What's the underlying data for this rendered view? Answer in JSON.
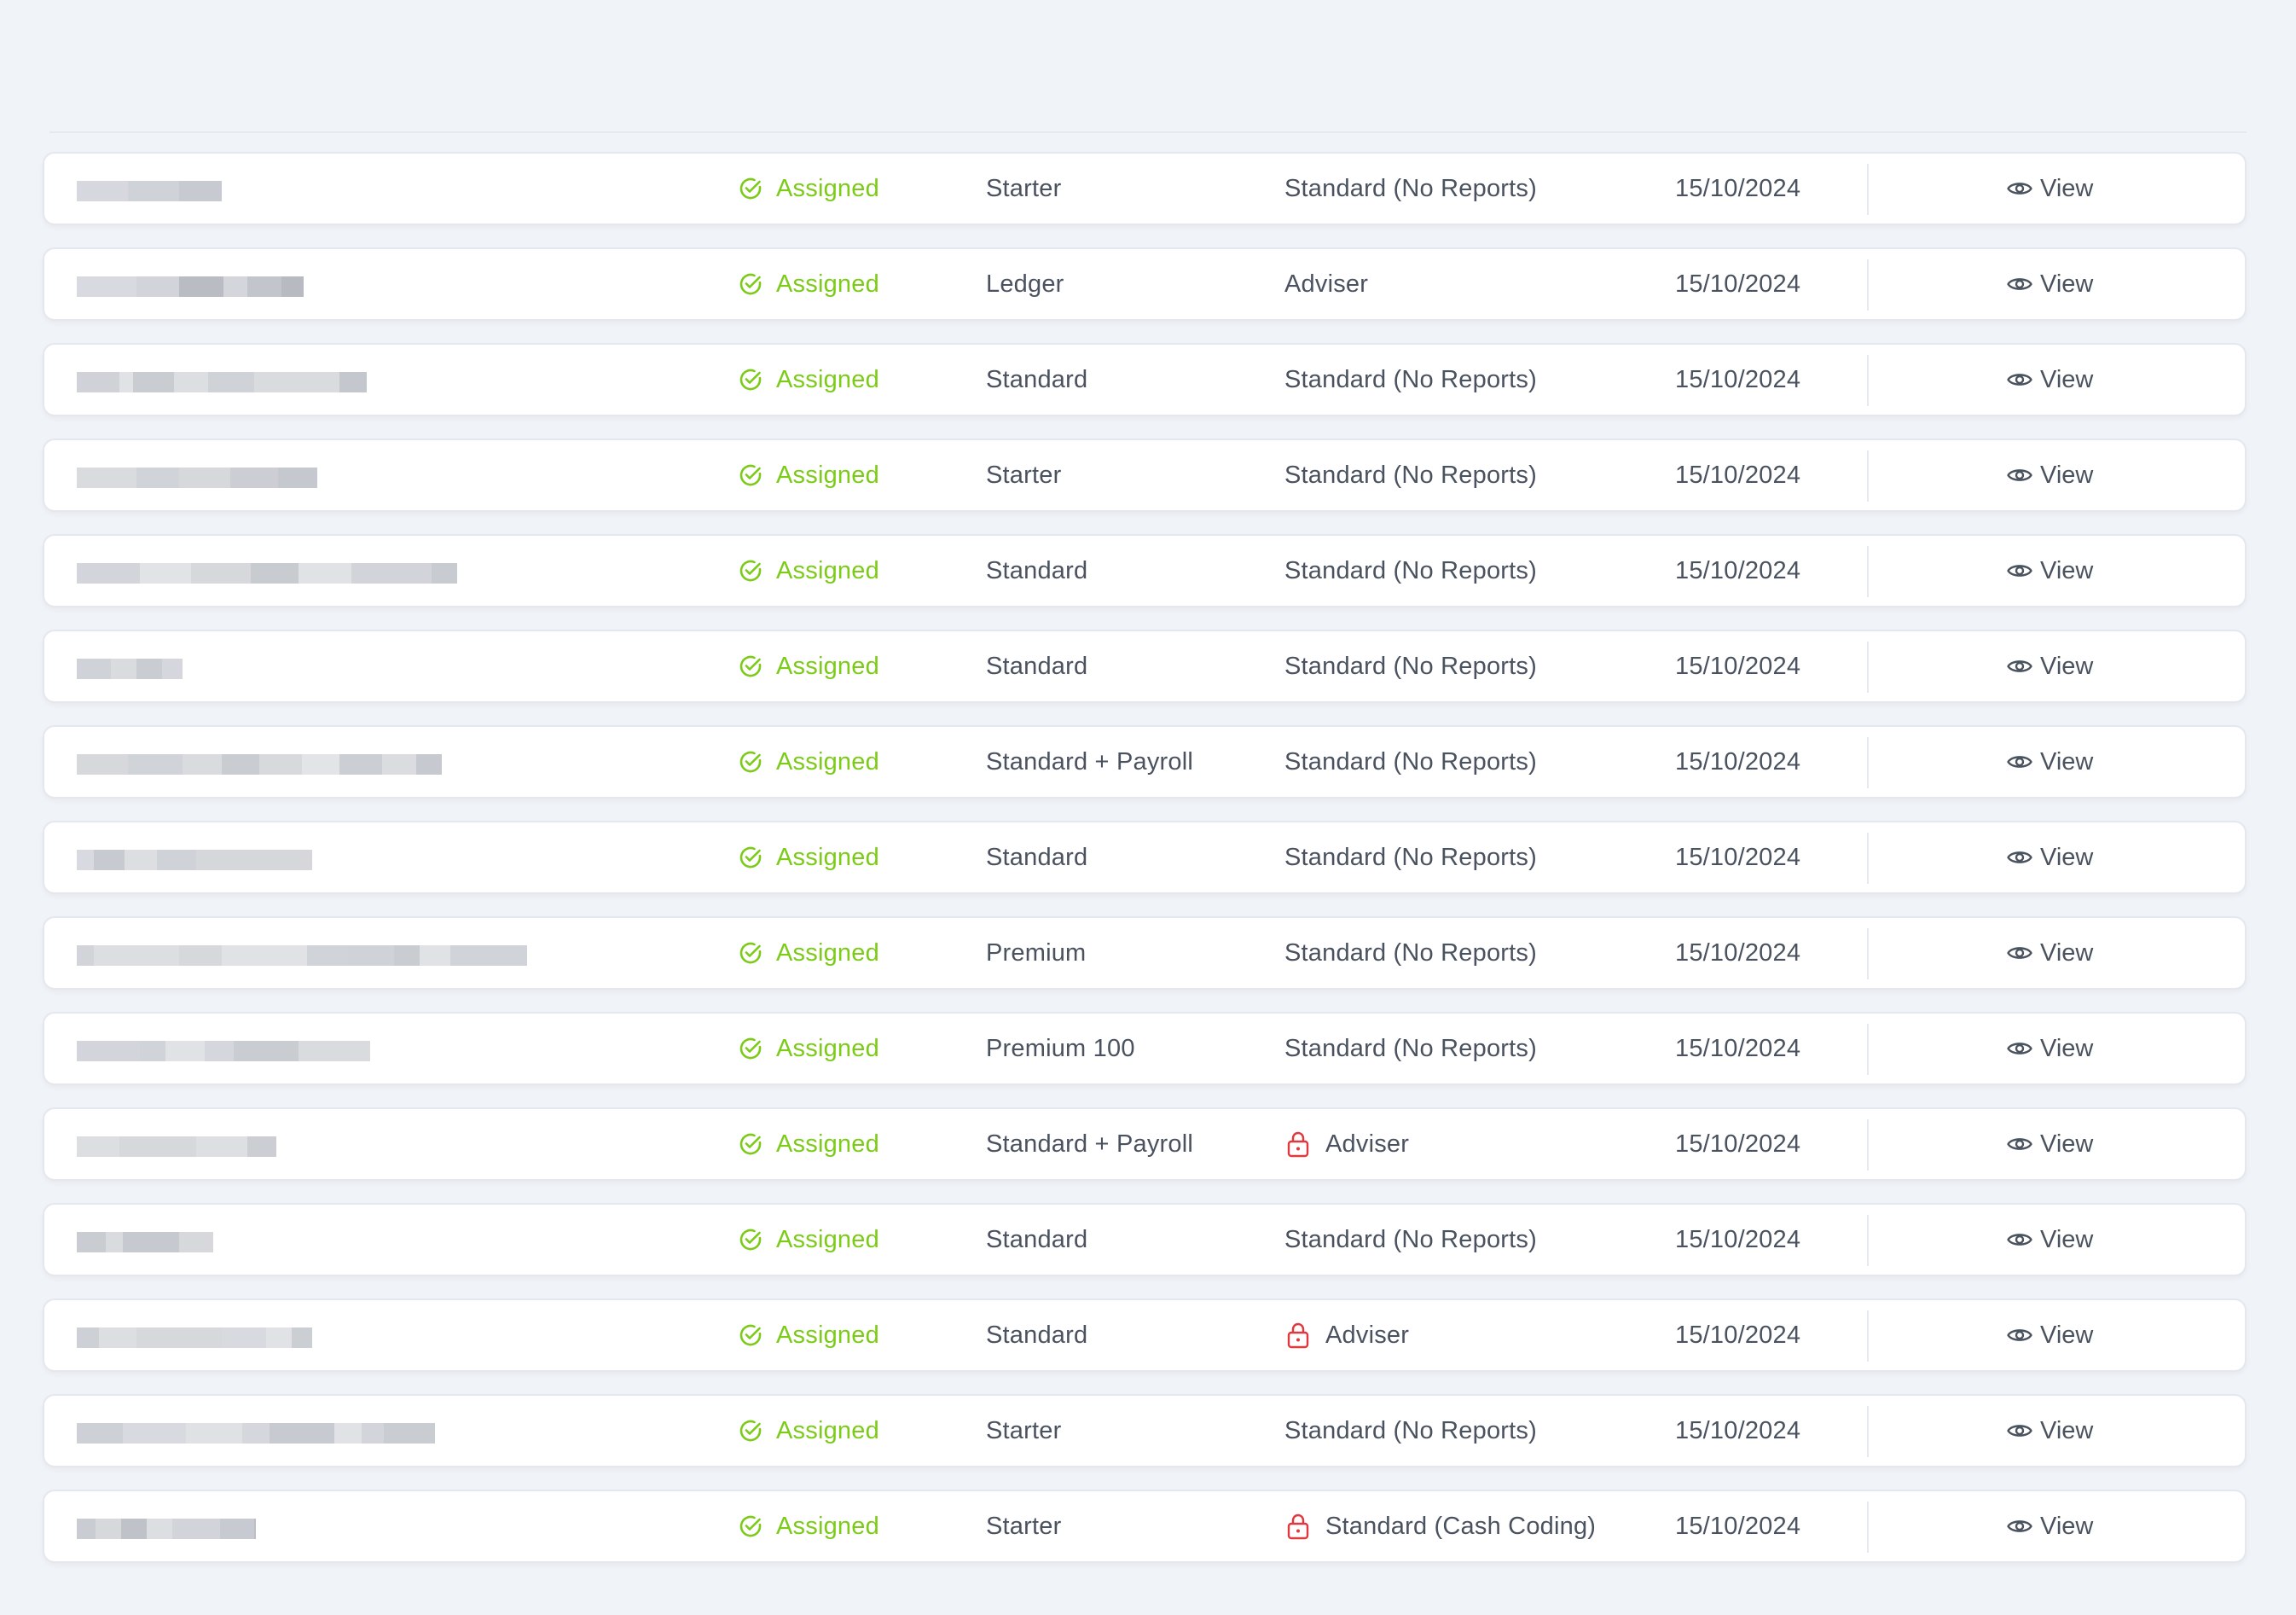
{
  "colors": {
    "assigned": "#7ccb18",
    "lock": "#e0383e",
    "text": "#4a5260",
    "background": "#f0f3f7"
  },
  "rows": [
    {
      "status": "Assigned",
      "plan": "Starter",
      "access": "Standard (No Reports)",
      "locked": false,
      "date": "15/10/2024",
      "action": "View",
      "name_blur": [
        [
          60,
          "#d6d8dd"
        ],
        [
          60,
          "#cfd2d7"
        ],
        [
          50,
          "#c7cad0"
        ]
      ]
    },
    {
      "status": "Assigned",
      "plan": "Ledger",
      "access": "Adviser",
      "locked": false,
      "date": "15/10/2024",
      "action": "View",
      "name_blur": [
        [
          70,
          "#d8dadf"
        ],
        [
          50,
          "#d2d4d9"
        ],
        [
          52,
          "#b9bcc3"
        ],
        [
          28,
          "#d4d6db"
        ],
        [
          40,
          "#c2c5cb"
        ],
        [
          26,
          "#b7bac1"
        ]
      ]
    },
    {
      "status": "Assigned",
      "plan": "Standard",
      "access": "Standard (No Reports)",
      "locked": false,
      "date": "15/10/2024",
      "action": "View",
      "name_blur": [
        [
          50,
          "#d0d2d7"
        ],
        [
          16,
          "#e0e2e6"
        ],
        [
          48,
          "#c9ccd1"
        ],
        [
          40,
          "#dcdee2"
        ],
        [
          54,
          "#cfd2d7"
        ],
        [
          100,
          "#d9dbdf"
        ],
        [
          32,
          "#c4c7cd"
        ]
      ]
    },
    {
      "status": "Assigned",
      "plan": "Starter",
      "access": "Standard (No Reports)",
      "locked": false,
      "date": "15/10/2024",
      "action": "View",
      "name_blur": [
        [
          70,
          "#d9dbdf"
        ],
        [
          50,
          "#d0d3d8"
        ],
        [
          60,
          "#d6d8dc"
        ],
        [
          56,
          "#ccced3"
        ],
        [
          46,
          "#c5c8ce"
        ]
      ]
    },
    {
      "status": "Assigned",
      "plan": "Standard",
      "access": "Standard (No Reports)",
      "locked": false,
      "date": "15/10/2024",
      "action": "View",
      "name_blur": [
        [
          74,
          "#d3d5da"
        ],
        [
          60,
          "#e1e3e6"
        ],
        [
          70,
          "#d6d8dc"
        ],
        [
          56,
          "#c8cbd0"
        ],
        [
          62,
          "#e0e2e5"
        ],
        [
          94,
          "#d2d4d9"
        ],
        [
          30,
          "#c8cbd0"
        ]
      ]
    },
    {
      "status": "Assigned",
      "plan": "Standard",
      "access": "Standard (No Reports)",
      "locked": false,
      "date": "15/10/2024",
      "action": "View",
      "name_blur": [
        [
          40,
          "#cfd2d7"
        ],
        [
          30,
          "#d9dbdf"
        ],
        [
          30,
          "#c9ccd1"
        ],
        [
          24,
          "#d5d7dc"
        ]
      ]
    },
    {
      "status": "Assigned",
      "plan": "Standard + Payroll",
      "access": "Standard (No Reports)",
      "locked": false,
      "date": "15/10/2024",
      "action": "View",
      "name_blur": [
        [
          60,
          "#d6d8dc"
        ],
        [
          64,
          "#d0d3d8"
        ],
        [
          46,
          "#d9dbdf"
        ],
        [
          44,
          "#c9ccd1"
        ],
        [
          50,
          "#d7d9dd"
        ],
        [
          44,
          "#e2e4e7"
        ],
        [
          50,
          "#cbced3"
        ],
        [
          40,
          "#dadce0"
        ],
        [
          30,
          "#c6c9cf"
        ]
      ]
    },
    {
      "status": "Assigned",
      "plan": "Standard",
      "access": "Standard (No Reports)",
      "locked": false,
      "date": "15/10/2024",
      "action": "View",
      "name_blur": [
        [
          20,
          "#d8dadf"
        ],
        [
          36,
          "#c7cad0"
        ],
        [
          38,
          "#dcdee2"
        ],
        [
          46,
          "#cfd2d7"
        ],
        [
          136,
          "#d5d7db"
        ]
      ]
    },
    {
      "status": "Assigned",
      "plan": "Premium",
      "access": "Standard (No Reports)",
      "locked": false,
      "date": "15/10/2024",
      "action": "View",
      "name_blur": [
        [
          20,
          "#d2d4d9"
        ],
        [
          100,
          "#dcdee2"
        ],
        [
          50,
          "#d6d8dc"
        ],
        [
          100,
          "#e0e2e6"
        ],
        [
          48,
          "#d0d3d8"
        ],
        [
          54,
          "#cfd2d7"
        ],
        [
          30,
          "#c9ccd1"
        ],
        [
          36,
          "#e0e2e5"
        ],
        [
          90,
          "#d0d3d8"
        ]
      ]
    },
    {
      "status": "Assigned",
      "plan": "Premium 100",
      "access": "Standard (No Reports)",
      "locked": false,
      "date": "15/10/2024",
      "action": "View",
      "name_blur": [
        [
          74,
          "#d3d5da"
        ],
        [
          30,
          "#d0d3d8"
        ],
        [
          46,
          "#e0e2e6"
        ],
        [
          34,
          "#d5d7dc"
        ],
        [
          76,
          "#c9ccd1"
        ],
        [
          84,
          "#d9dbdf"
        ]
      ]
    },
    {
      "status": "Assigned",
      "plan": "Standard + Payroll",
      "access": "Adviser",
      "locked": true,
      "date": "15/10/2024",
      "action": "View",
      "name_blur": [
        [
          50,
          "#dcdee2"
        ],
        [
          90,
          "#d6d8dc"
        ],
        [
          60,
          "#dddfe3"
        ],
        [
          34,
          "#ccced3"
        ]
      ]
    },
    {
      "status": "Assigned",
      "plan": "Standard",
      "access": "Standard (No Reports)",
      "locked": false,
      "date": "15/10/2024",
      "action": "View",
      "name_blur": [
        [
          34,
          "#c9ccd1"
        ],
        [
          20,
          "#d9dbdf"
        ],
        [
          66,
          "#c6c9cf"
        ],
        [
          40,
          "#d6d8dc"
        ]
      ]
    },
    {
      "status": "Assigned",
      "plan": "Standard",
      "access": "Adviser",
      "locked": true,
      "date": "15/10/2024",
      "action": "View",
      "name_blur": [
        [
          26,
          "#cdd0d5"
        ],
        [
          44,
          "#dcdee2"
        ],
        [
          100,
          "#d6d8dc"
        ],
        [
          52,
          "#d8dadf"
        ],
        [
          30,
          "#e0e2e5"
        ],
        [
          24,
          "#cbced3"
        ]
      ]
    },
    {
      "status": "Assigned",
      "plan": "Starter",
      "access": "Standard (No Reports)",
      "locked": false,
      "date": "15/10/2024",
      "action": "View",
      "name_blur": [
        [
          54,
          "#cdd0d5"
        ],
        [
          74,
          "#d8dadf"
        ],
        [
          66,
          "#dfe1e4"
        ],
        [
          32,
          "#d5d7dc"
        ],
        [
          76,
          "#c7cad0"
        ],
        [
          32,
          "#e0e2e5"
        ],
        [
          26,
          "#d3d5da"
        ],
        [
          60,
          "#c9ccd1"
        ]
      ]
    },
    {
      "status": "Assigned",
      "plan": "Starter",
      "access": "Standard (Cash Coding)",
      "locked": true,
      "date": "15/10/2024",
      "action": "View",
      "name_blur": [
        [
          22,
          "#c9ccd1"
        ],
        [
          30,
          "#d6d8dc"
        ],
        [
          30,
          "#bfc2c8"
        ],
        [
          30,
          "#dcdee2"
        ],
        [
          56,
          "#d2d4d9"
        ],
        [
          40,
          "#c7cad0"
        ],
        [
          2,
          "#bbbec5"
        ]
      ]
    }
  ]
}
